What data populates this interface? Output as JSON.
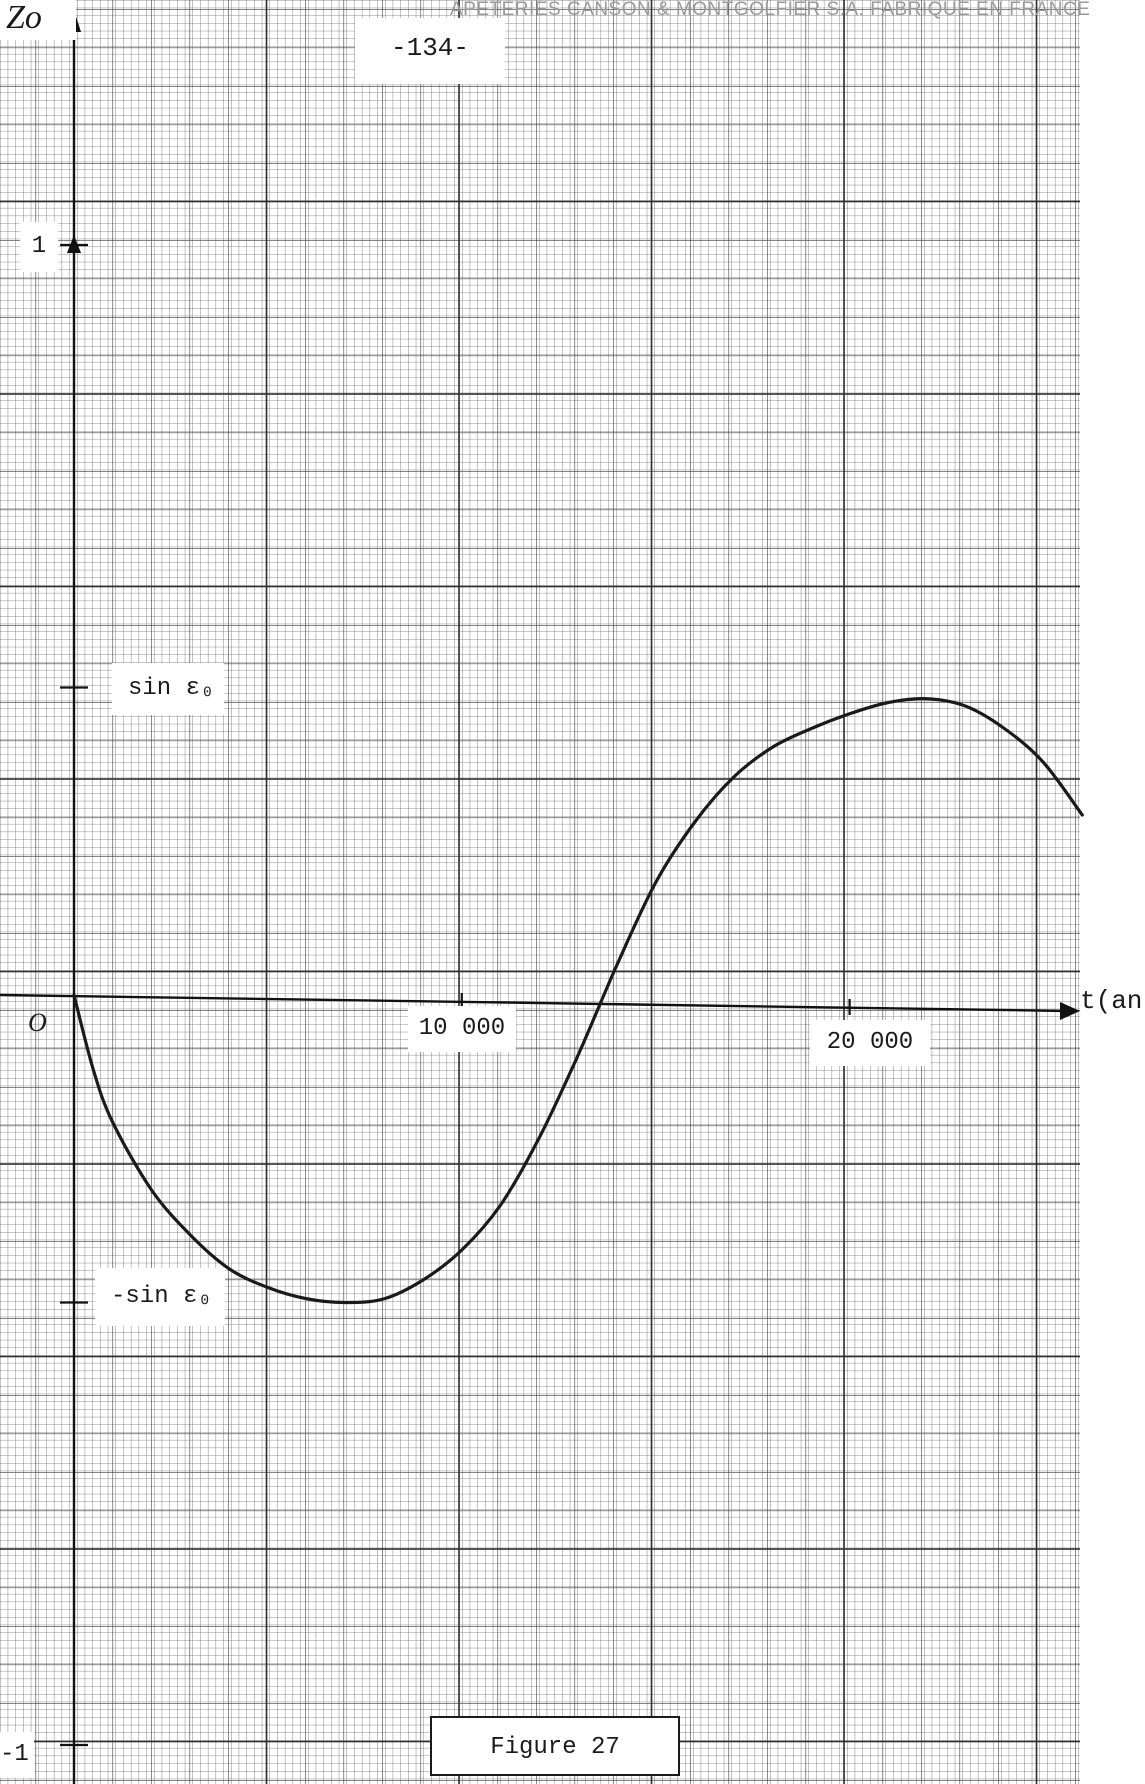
{
  "header": {
    "page_number": "-134-",
    "paper_maker_imprint": "APETERIES CANSON & MONTGOLFIER S.A. FABRIQUE EN FRANCE"
  },
  "chart_data": {
    "type": "line",
    "title": "",
    "ylabel": "Zo",
    "xlabel": "t(an",
    "xlim": [
      0,
      26000
    ],
    "ylim": [
      -1,
      1
    ],
    "grid": true,
    "x_tick_labels": [
      "10 000",
      "20 000"
    ],
    "y_tick_labels": {
      "top": "1",
      "bottom": "-1",
      "upper_mark": "sin ε₀",
      "lower_mark": "-sin ε₀"
    },
    "origin_label": "O",
    "series": [
      {
        "x": [
          0,
          500,
          1000,
          2000,
          3000,
          4000,
          5000,
          6000,
          7000,
          8000,
          9000,
          10000,
          11000,
          12000,
          13000,
          14000,
          15000,
          16000,
          17000,
          18000,
          19000,
          20000,
          21000,
          22000,
          23000,
          24000,
          25000,
          26000
        ],
        "y": [
          0.0,
          -0.1,
          -0.17,
          -0.26,
          -0.32,
          -0.365,
          -0.39,
          -0.405,
          -0.41,
          -0.405,
          -0.38,
          -0.34,
          -0.28,
          -0.19,
          -0.08,
          0.04,
          0.15,
          0.23,
          0.29,
          0.33,
          0.355,
          0.375,
          0.39,
          0.395,
          0.385,
          0.355,
          0.31,
          0.24
        ]
      }
    ]
  },
  "figure_label": "Figure 27"
}
